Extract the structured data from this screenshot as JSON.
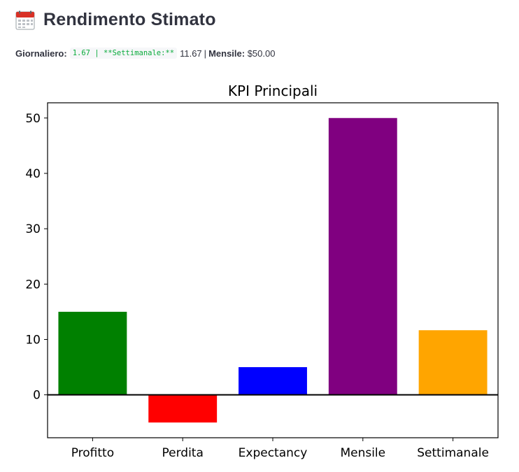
{
  "header": {
    "icon": "calendar-icon",
    "title": "Rendimento Stimato"
  },
  "stats": {
    "daily_label": "Giornaliero:",
    "code_text": "1.67 | **Settimanale:**",
    "weekly_value": "11.67",
    "separator": "|",
    "monthly_label": "Mensile:",
    "monthly_value": "$50.00"
  },
  "chart_data": {
    "type": "bar",
    "title": "KPI Principali",
    "categories": [
      "Profitto",
      "Perdita",
      "Expectancy",
      "Mensile",
      "Settimanale"
    ],
    "values": [
      15,
      -5,
      5,
      50,
      11.67
    ],
    "colors": [
      "#008000",
      "#ff0000",
      "#0000ff",
      "#800080",
      "#ffa500"
    ],
    "ylim": [
      -7.75,
      52.75
    ],
    "yticks": [
      0,
      10,
      20,
      30,
      40,
      50
    ],
    "zero_line": true,
    "grid": false
  }
}
